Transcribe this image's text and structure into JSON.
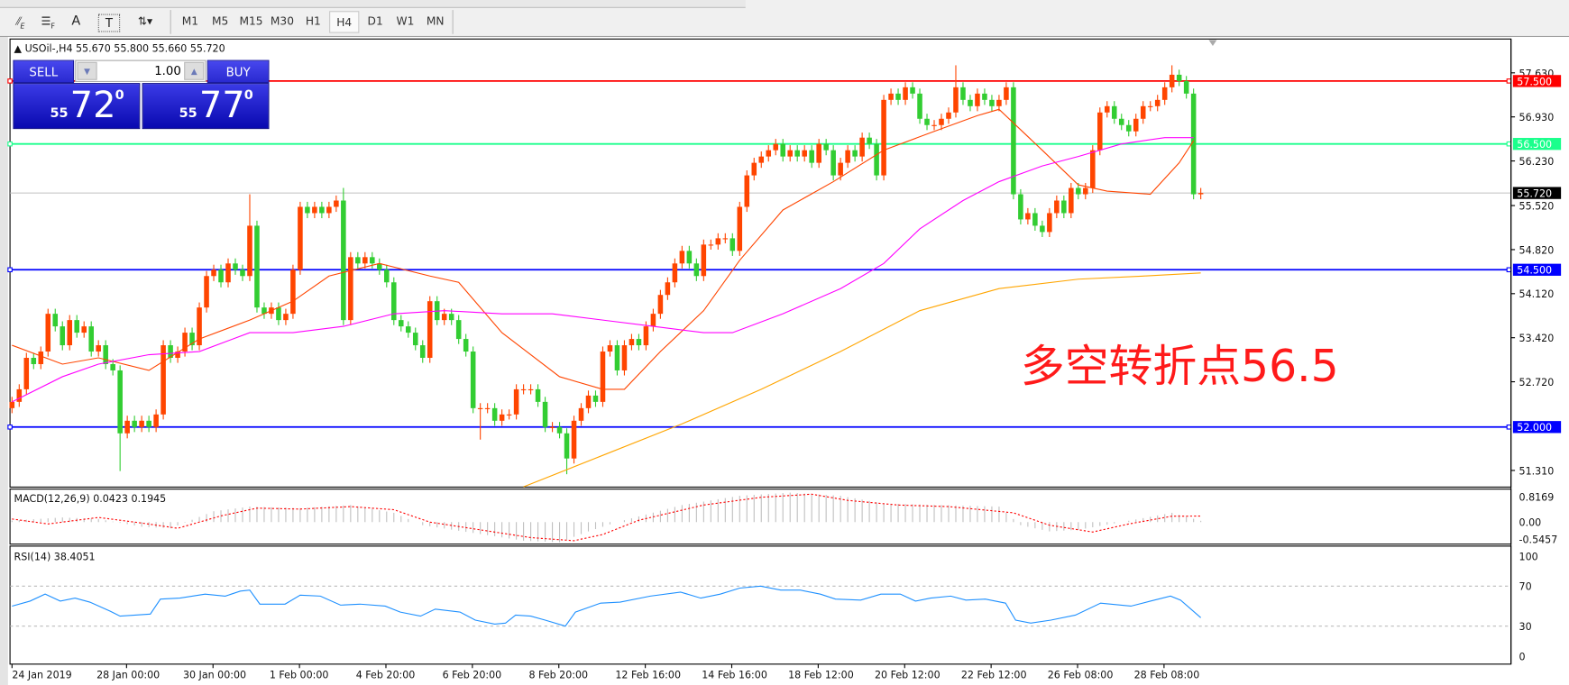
{
  "toolbar": {
    "tools": [
      {
        "icon": "fibonacci-expansion-icon",
        "label": "E"
      },
      {
        "icon": "fibonacci-fan-icon",
        "label": "F"
      },
      {
        "icon": "text-icon",
        "label": "A"
      },
      {
        "icon": "text-label-icon",
        "label": "T"
      },
      {
        "icon": "arrows-dropdown-icon",
        "label": "▾"
      }
    ],
    "timeframes": [
      "M1",
      "M5",
      "M15",
      "M30",
      "H1",
      "H4",
      "D1",
      "W1",
      "MN"
    ],
    "active_timeframe": "H4"
  },
  "chart": {
    "header": "USOil-,H4  55.670 55.800 55.660 55.720",
    "symbol": "USOil-",
    "timeframe": "H4",
    "ohlc": {
      "open": "55.670",
      "high": "55.800",
      "low": "55.660",
      "close": "55.720"
    },
    "annotation": "多空转折点56.5",
    "annotation_color": "#ff1a1a"
  },
  "trade_panel": {
    "sell_label": "SELL",
    "buy_label": "BUY",
    "lot_value": "1.00",
    "sell_price": {
      "prefix": "55",
      "big": "72",
      "sup": "0"
    },
    "buy_price": {
      "prefix": "55",
      "big": "77",
      "sup": "0"
    }
  },
  "chart_data": {
    "type": "candlestick",
    "up_color": "#ff4500",
    "down_color": "#32cd32",
    "price_range": [
      51.1,
      58.2
    ],
    "price_axis_labels": [
      "57.630",
      "56.930",
      "56.230",
      "55.520",
      "54.820",
      "54.120",
      "53.420",
      "52.720",
      "51.310"
    ],
    "close": [
      52.4,
      52.6,
      53.1,
      53.0,
      53.2,
      53.8,
      53.6,
      53.3,
      53.7,
      53.5,
      53.6,
      53.2,
      53.3,
      53.0,
      52.9,
      51.9,
      52.1,
      52.0,
      52.1,
      52.0,
      52.2,
      53.3,
      53.1,
      53.2,
      53.5,
      53.3,
      53.9,
      54.4,
      54.5,
      54.3,
      54.6,
      54.5,
      54.4,
      55.2,
      53.9,
      53.8,
      53.9,
      53.7,
      53.8,
      54.5,
      55.5,
      55.4,
      55.5,
      55.4,
      55.5,
      55.6,
      53.7,
      54.7,
      54.6,
      54.7,
      54.6,
      54.5,
      54.3,
      53.7,
      53.6,
      53.5,
      53.3,
      53.1,
      54.0,
      53.7,
      53.8,
      53.7,
      53.4,
      53.2,
      52.3,
      52.3,
      52.3,
      52.1,
      52.2,
      52.2,
      52.6,
      52.6,
      52.6,
      52.4,
      52.0,
      52.0,
      51.9,
      51.5,
      52.1,
      52.3,
      52.5,
      52.4,
      53.2,
      53.3,
      52.9,
      53.3,
      53.4,
      53.3,
      53.6,
      53.8,
      54.1,
      54.3,
      54.6,
      54.8,
      54.6,
      54.4,
      54.9,
      54.9,
      55.0,
      55.0,
      54.8,
      55.5,
      56.0,
      56.2,
      56.3,
      56.4,
      56.5,
      56.3,
      56.4,
      56.3,
      56.4,
      56.2,
      56.5,
      56.4,
      56.0,
      56.2,
      56.4,
      56.3,
      56.6,
      56.5,
      56.0,
      57.2,
      57.3,
      57.2,
      57.4,
      57.3,
      56.9,
      56.8,
      56.8,
      56.9,
      57.0,
      57.4,
      57.2,
      57.1,
      57.3,
      57.2,
      57.1,
      57.2,
      57.4,
      55.7,
      55.3,
      55.4,
      55.2,
      55.1,
      55.4,
      55.6,
      55.4,
      55.8,
      55.7,
      55.8,
      56.4,
      57.0,
      57.1,
      56.9,
      56.8,
      56.7,
      56.9,
      57.1,
      57.1,
      57.2,
      57.4,
      57.6,
      57.5,
      57.3,
      55.7,
      55.72
    ],
    "wick_extremes": {
      "15": {
        "low": 51.3
      },
      "33": {
        "high": 55.7
      },
      "46": {
        "high": 55.8
      },
      "65": {
        "low": 51.8
      },
      "77": {
        "low": 51.25
      },
      "131": {
        "high": 57.75
      },
      "161": {
        "high": 57.75
      }
    },
    "horizontal_lines": [
      {
        "price": 57.5,
        "label": "57.500",
        "color": "#ff0000"
      },
      {
        "price": 56.5,
        "label": "56.500",
        "color": "#1aff8c"
      },
      {
        "price": 54.5,
        "label": "54.500",
        "color": "#0000ff"
      },
      {
        "price": 52.0,
        "label": "52.000",
        "color": "#0000ff"
      }
    ],
    "current_price": {
      "price": 55.72,
      "label": "55.720"
    },
    "moving_averages": [
      {
        "color": "#ff4500",
        "points": [
          [
            0,
            53.3
          ],
          [
            7,
            53.0
          ],
          [
            12,
            53.1
          ],
          [
            19,
            52.9
          ],
          [
            26,
            53.4
          ],
          [
            33,
            53.7
          ],
          [
            39,
            54.0
          ],
          [
            44,
            54.4
          ],
          [
            51,
            54.6
          ],
          [
            58,
            54.4
          ],
          [
            62,
            54.3
          ],
          [
            68,
            53.5
          ],
          [
            76,
            52.8
          ],
          [
            82,
            52.6
          ],
          [
            85,
            52.6
          ],
          [
            90,
            53.2
          ],
          [
            96,
            53.85
          ],
          [
            101,
            54.65
          ],
          [
            107,
            55.45
          ],
          [
            114,
            55.9
          ],
          [
            121,
            56.4
          ],
          [
            128,
            56.7
          ],
          [
            134,
            56.95
          ],
          [
            137,
            57.05
          ],
          [
            143,
            56.4
          ],
          [
            148,
            55.85
          ],
          [
            152,
            55.75
          ],
          [
            158,
            55.7
          ],
          [
            162,
            56.2
          ],
          [
            164,
            56.55
          ]
        ]
      },
      {
        "color": "#ff00ff",
        "points": [
          [
            0,
            52.4
          ],
          [
            7,
            52.8
          ],
          [
            12,
            53.0
          ],
          [
            19,
            53.15
          ],
          [
            26,
            53.2
          ],
          [
            33,
            53.5
          ],
          [
            39,
            53.5
          ],
          [
            46,
            53.6
          ],
          [
            53,
            53.8
          ],
          [
            60,
            53.85
          ],
          [
            68,
            53.8
          ],
          [
            75,
            53.8
          ],
          [
            82,
            53.7
          ],
          [
            89,
            53.6
          ],
          [
            96,
            53.5
          ],
          [
            100,
            53.5
          ],
          [
            107,
            53.8
          ],
          [
            115,
            54.2
          ],
          [
            121,
            54.6
          ],
          [
            126,
            55.15
          ],
          [
            132,
            55.6
          ],
          [
            137,
            55.9
          ],
          [
            143,
            56.15
          ],
          [
            148,
            56.3
          ],
          [
            154,
            56.5
          ],
          [
            160,
            56.6
          ],
          [
            164,
            56.6
          ]
        ]
      },
      {
        "color": "#ffa500",
        "points": [
          [
            71,
            51.05
          ],
          [
            82,
            51.55
          ],
          [
            93,
            52.05
          ],
          [
            104,
            52.6
          ],
          [
            115,
            53.2
          ],
          [
            126,
            53.85
          ],
          [
            137,
            54.2
          ],
          [
            148,
            54.35
          ],
          [
            157,
            54.4
          ],
          [
            165,
            54.45
          ]
        ]
      }
    ],
    "time_labels": [
      "24 Jan 2019",
      "28 Jan 00:00",
      "30 Jan 00:00",
      "1 Feb 00:00",
      "4 Feb 20:00",
      "6 Feb 20:00",
      "8 Feb 20:00",
      "12 Feb 16:00",
      "14 Feb 16:00",
      "18 Feb 12:00",
      "20 Feb 12:00",
      "22 Feb 12:00",
      "26 Feb 08:00",
      "28 Feb 08:00"
    ],
    "macd": {
      "label": "MACD(12,26,9) 0.0423 0.1945",
      "range": [
        -0.5457,
        0.8169
      ],
      "axis_labels": [
        "0.8169",
        "0.00",
        "-0.5457"
      ],
      "histogram_color": "#c0c0c0",
      "signal_color": "#ff0000",
      "histogram": [
        [
          0,
          0.05
        ],
        [
          7,
          0.15
        ],
        [
          12,
          0.1
        ],
        [
          18,
          -0.15
        ],
        [
          22,
          -0.2
        ],
        [
          28,
          0.35
        ],
        [
          33,
          0.5
        ],
        [
          40,
          0.45
        ],
        [
          47,
          0.55
        ],
        [
          53,
          0.3
        ],
        [
          57,
          -0.1
        ],
        [
          64,
          -0.35
        ],
        [
          71,
          -0.6
        ],
        [
          76,
          -0.65
        ],
        [
          80,
          -0.3
        ],
        [
          84,
          0.0
        ],
        [
          93,
          0.55
        ],
        [
          101,
          0.85
        ],
        [
          108,
          0.95
        ],
        [
          115,
          0.85
        ],
        [
          121,
          0.6
        ],
        [
          129,
          0.55
        ],
        [
          137,
          0.5
        ],
        [
          140,
          -0.1
        ],
        [
          144,
          -0.3
        ],
        [
          148,
          -0.25
        ],
        [
          154,
          0.0
        ],
        [
          161,
          0.3
        ],
        [
          165,
          0.0423
        ]
      ],
      "signal": [
        [
          0,
          0.1
        ],
        [
          5,
          -0.06
        ],
        [
          12,
          0.15
        ],
        [
          18,
          -0.03
        ],
        [
          23,
          -0.2
        ],
        [
          29,
          0.2
        ],
        [
          34,
          0.45
        ],
        [
          40,
          0.42
        ],
        [
          47,
          0.5
        ],
        [
          53,
          0.4
        ],
        [
          58,
          0
        ],
        [
          65,
          -0.25
        ],
        [
          72,
          -0.5
        ],
        [
          78,
          -0.6
        ],
        [
          82,
          -0.4
        ],
        [
          87,
          0.06
        ],
        [
          96,
          0.55
        ],
        [
          104,
          0.8
        ],
        [
          111,
          0.9
        ],
        [
          116,
          0.7
        ],
        [
          123,
          0.55
        ],
        [
          130,
          0.5
        ],
        [
          139,
          0.3
        ],
        [
          144,
          -0.1
        ],
        [
          150,
          -0.32
        ],
        [
          155,
          -0.06
        ],
        [
          161,
          0.19
        ],
        [
          165,
          0.1945
        ]
      ]
    },
    "rsi": {
      "label": "RSI(14) 38.4051",
      "range": [
        0,
        100
      ],
      "levels": [
        70,
        30
      ],
      "axis_labels": [
        "100",
        "70",
        "30",
        "0"
      ],
      "color": "#1e90ff",
      "points": [
        [
          0,
          50
        ],
        [
          2.5,
          55
        ],
        [
          4.6,
          62
        ],
        [
          6.7,
          55
        ],
        [
          8.75,
          58
        ],
        [
          10.8,
          54
        ],
        [
          13.6,
          45
        ],
        [
          15,
          40
        ],
        [
          19.2,
          42
        ],
        [
          20.6,
          57
        ],
        [
          23.3,
          58
        ],
        [
          26.8,
          62
        ],
        [
          29.6,
          60
        ],
        [
          31.7,
          65
        ],
        [
          33,
          66
        ],
        [
          34.4,
          52
        ],
        [
          37.9,
          52
        ],
        [
          40,
          61
        ],
        [
          42.8,
          60
        ],
        [
          45.6,
          51
        ],
        [
          48.3,
          52
        ],
        [
          51.8,
          50
        ],
        [
          53.9,
          44
        ],
        [
          56.7,
          40
        ],
        [
          58.75,
          47
        ],
        [
          62.2,
          44
        ],
        [
          64.3,
          36
        ],
        [
          67,
          32
        ],
        [
          68.5,
          33
        ],
        [
          69.9,
          41
        ],
        [
          72,
          40
        ],
        [
          74,
          36
        ],
        [
          76.8,
          30
        ],
        [
          78.2,
          44
        ],
        [
          81.7,
          53
        ],
        [
          84.4,
          54
        ],
        [
          88.6,
          60
        ],
        [
          92.8,
          64
        ],
        [
          95.6,
          58
        ],
        [
          98.3,
          62
        ],
        [
          101,
          68
        ],
        [
          103.9,
          70
        ],
        [
          106.7,
          66
        ],
        [
          109.4,
          66
        ],
        [
          112.2,
          62
        ],
        [
          114.3,
          57
        ],
        [
          117.8,
          56
        ],
        [
          120.6,
          62
        ],
        [
          123.3,
          62
        ],
        [
          125.4,
          55
        ],
        [
          127.5,
          58
        ],
        [
          130.3,
          60
        ],
        [
          132.4,
          56
        ],
        [
          135.1,
          57
        ],
        [
          137.9,
          53
        ],
        [
          139.3,
          36
        ],
        [
          141.4,
          33
        ],
        [
          144.2,
          36
        ],
        [
          147.6,
          41
        ],
        [
          151.1,
          53
        ],
        [
          155.3,
          50
        ],
        [
          158,
          55
        ],
        [
          160.8,
          60
        ],
        [
          162.2,
          56
        ],
        [
          165,
          38.4051
        ]
      ]
    }
  }
}
